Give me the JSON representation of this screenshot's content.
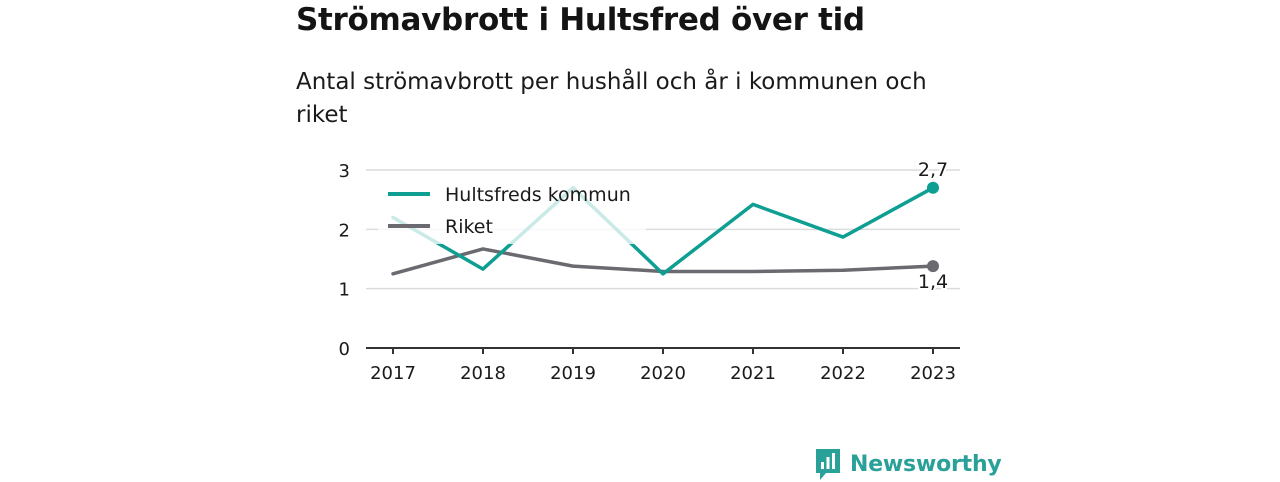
{
  "header": {
    "title": "Strömavbrott i Hultsfred över tid",
    "subtitle": "Antal strömavbrott per hushåll och år i kommunen och riket"
  },
  "brand": {
    "name": "Newsworthy",
    "logo_icon": "newsworthy-logo-icon",
    "color": "#2aa198"
  },
  "chart_data": {
    "type": "line",
    "title": "Strömavbrott i Hultsfred över tid",
    "subtitle": "Antal strömavbrott per hushåll och år i kommunen och riket",
    "xlabel": "",
    "ylabel": "",
    "categories": [
      "2017",
      "2018",
      "2019",
      "2020",
      "2021",
      "2022",
      "2023"
    ],
    "ylim": [
      0,
      3
    ],
    "yticks": [
      0,
      1,
      2,
      3
    ],
    "grid": true,
    "legend_position": "top-left",
    "series": [
      {
        "name": "Hultsfreds kommun",
        "color": "#0e9e92",
        "values": [
          2.2,
          1.33,
          2.7,
          1.25,
          2.42,
          1.87,
          2.7
        ],
        "end_label": "2,7"
      },
      {
        "name": "Riket",
        "color": "#6b6a70",
        "values": [
          1.25,
          1.67,
          1.38,
          1.29,
          1.29,
          1.31,
          1.38
        ],
        "end_label": "1,4"
      }
    ]
  }
}
